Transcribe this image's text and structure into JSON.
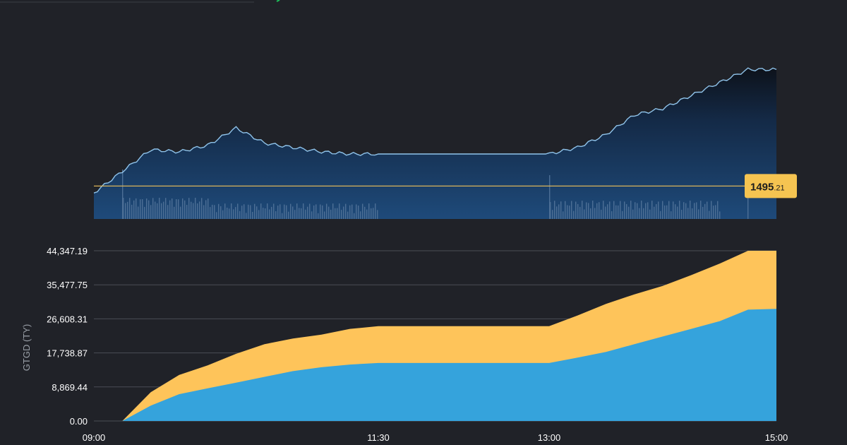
{
  "colors": {
    "background": "#202228",
    "price_line": "#8fc3ea",
    "price_fill_top": "#0f1624",
    "price_fill_bottom": "#1c4473",
    "reference_line": "#d9b25a",
    "badge": "#f5c451",
    "series_lower": "#35a3dc",
    "series_upper": "#fec45a",
    "grid": "#4a4d55",
    "volume": "#4d6f96"
  },
  "chart_data": [
    {
      "type": "area",
      "title": "",
      "reference_value_label": "1495",
      "reference_value_decimals": ".21",
      "x_ticks": [
        "09:00",
        "11:30",
        "13:00",
        "15:00"
      ],
      "x": [
        "09:00",
        "09:15",
        "09:30",
        "09:45",
        "10:00",
        "10:15",
        "10:30",
        "10:45",
        "11:00",
        "11:15",
        "11:30",
        "11:45",
        "12:00",
        "12:15",
        "12:30",
        "12:45",
        "13:00",
        "13:15",
        "13:30",
        "13:45",
        "14:00",
        "14:15",
        "14:30",
        "14:45",
        "15:00"
      ],
      "price": [
        1492,
        1502,
        1512,
        1511,
        1514,
        1522,
        1515,
        1513,
        1511,
        1510,
        1510,
        1510,
        1510,
        1510,
        1510,
        1510,
        1510,
        1513,
        1519,
        1528,
        1531,
        1537,
        1543,
        1549,
        1549
      ]
    },
    {
      "type": "area",
      "ylabel": "GTGD (TY)",
      "y_ticks": [
        "44,347.19",
        "35,477.75",
        "26,608.31",
        "17,738.87",
        "8,869.44",
        "0.00"
      ],
      "ylim": [
        0,
        44347.19
      ],
      "x_ticks": [
        "09:00",
        "11:30",
        "13:00",
        "15:00"
      ],
      "x": [
        "09:00",
        "09:15",
        "09:30",
        "09:45",
        "10:00",
        "10:15",
        "10:30",
        "10:45",
        "11:00",
        "11:15",
        "11:30",
        "11:45",
        "12:00",
        "12:15",
        "12:30",
        "12:45",
        "13:00",
        "13:15",
        "13:30",
        "13:45",
        "14:00",
        "14:15",
        "14:30",
        "14:45",
        "15:00"
      ],
      "series": [
        {
          "values": [
            0,
            0,
            4000,
            7000,
            8500,
            10000,
            11500,
            13000,
            14000,
            14700,
            15100,
            15100,
            15100,
            15100,
            15100,
            15100,
            15100,
            16500,
            18000,
            20000,
            22000,
            24000,
            26000,
            29000,
            29200
          ]
        },
        {
          "values": [
            0,
            0,
            7500,
            12000,
            14500,
            17500,
            20000,
            21500,
            22500,
            24000,
            24700,
            24700,
            24700,
            24700,
            24700,
            24700,
            24700,
            27500,
            30500,
            33000,
            35200,
            38000,
            41000,
            44347,
            44347
          ]
        }
      ]
    }
  ]
}
